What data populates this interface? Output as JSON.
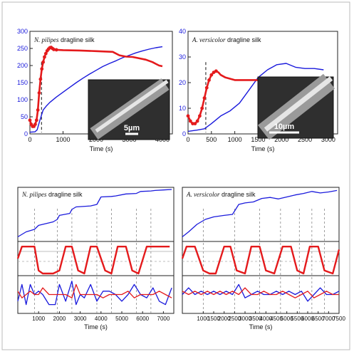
{
  "figure": {
    "background": "#ffffff",
    "frame_color": "#888888"
  },
  "chart_data": [
    {
      "type": "line",
      "title_species": "N. pilipes",
      "title_rest": " dragline silk",
      "xlabel": "Time (s)",
      "xlim": [
        0,
        4300
      ],
      "ylim": [
        0,
        300
      ],
      "xticks": [
        "0",
        "1000",
        "2000",
        "3000",
        "4000"
      ],
      "yticks": [
        "0",
        "50",
        "100",
        "150",
        "200",
        "250",
        "300"
      ],
      "yticks_color": "#1a1adc",
      "dashed_marker_x": 350,
      "inset_scale_label": "5µm",
      "series": [
        {
          "color": "#1a1adc",
          "style": "line",
          "x": [
            0,
            150,
            220,
            300,
            400,
            500,
            600,
            800,
            1000,
            1200,
            1400,
            1600,
            1800,
            2000,
            2200,
            2400,
            2600,
            2800,
            3000,
            3200,
            3400,
            3600,
            3800,
            4000
          ],
          "y": [
            5,
            6,
            12,
            40,
            70,
            82,
            92,
            108,
            122,
            136,
            150,
            163,
            175,
            186,
            197,
            206,
            214,
            223,
            230,
            237,
            243,
            248,
            252,
            255
          ]
        },
        {
          "color": "#e41a1c",
          "style": "markers-line",
          "x": [
            0,
            40,
            80,
            120,
            160,
            200,
            240,
            280,
            320,
            360,
            400,
            440,
            480,
            520,
            560,
            600,
            640,
            680,
            720,
            800,
            1000,
            1500,
            2000,
            2500,
            2700,
            2900,
            3100,
            3300,
            3500,
            3700,
            3800,
            3900,
            4000
          ],
          "y": [
            40,
            28,
            22,
            22,
            28,
            40,
            70,
            120,
            160,
            190,
            210,
            225,
            235,
            243,
            248,
            252,
            253,
            250,
            247,
            246,
            245,
            244,
            242,
            240,
            230,
            226,
            225,
            221,
            217,
            210,
            205,
            200,
            198
          ]
        }
      ]
    },
    {
      "type": "line",
      "title_species": "A. versicolor",
      "title_rest": " dragline silk",
      "xlabel": "Time (s)",
      "xlim": [
        0,
        3200
      ],
      "ylim": [
        0,
        40
      ],
      "xticks": [
        "0",
        "500",
        "1000",
        "1500",
        "2000",
        "2500",
        "3000"
      ],
      "yticks": [
        "0",
        "10",
        "20",
        "30",
        "40"
      ],
      "yticks_color": "#1a1adc",
      "dashed_marker_x": 380,
      "inset_scale_label": "10µm",
      "series": [
        {
          "color": "#1a1adc",
          "style": "line",
          "x": [
            0,
            200,
            350,
            500,
            700,
            900,
            1100,
            1300,
            1500,
            1700,
            1900,
            2100,
            2300,
            2500,
            2700,
            2900
          ],
          "y": [
            1,
            1.5,
            2,
            4,
            7,
            9,
            12,
            17,
            22,
            25,
            27,
            27.5,
            26,
            25.5,
            25.5,
            25
          ]
        },
        {
          "color": "#e41a1c",
          "style": "markers-line",
          "x": [
            0,
            50,
            100,
            150,
            200,
            250,
            300,
            350,
            400,
            450,
            500,
            550,
            600,
            650,
            700,
            800,
            1000,
            1500,
            2000,
            2500,
            2900
          ],
          "y": [
            7,
            5,
            4,
            4,
            5,
            7,
            10,
            14,
            18,
            21,
            23,
            24,
            24.5,
            24,
            23,
            22,
            21,
            21,
            21,
            21,
            21
          ]
        }
      ]
    },
    {
      "type": "line",
      "title_species": "N. pilipes",
      "title_rest": " dragline silk",
      "xlabel": "Time (s)",
      "xlim": [
        0,
        7500
      ],
      "xticks": [
        "1000",
        "2000",
        "3000",
        "4000",
        "5000",
        "6000",
        "7000"
      ],
      "dashed_verticals": [
        800,
        1900,
        2600,
        3800,
        4500,
        5700,
        6400
      ],
      "panels": {
        "top": {
          "ylim": [
            0,
            10
          ],
          "series": [
            {
              "color": "#1a1adc",
              "x": [
                0,
                400,
                800,
                1000,
                1700,
                1900,
                2000,
                2500,
                2600,
                2800,
                3500,
                3800,
                4000,
                4500,
                4700,
                5200,
                5700,
                5900,
                6400,
                6600,
                7000,
                7400
              ],
              "y": [
                0.5,
                1.5,
                2,
                2.8,
                3.5,
                4,
                4.8,
                5.2,
                6,
                6.5,
                6.7,
                7,
                8.5,
                8.6,
                8.7,
                9.1,
                9.2,
                9.6,
                9.7,
                9.8,
                9.9,
                10
              ]
            }
          ]
        },
        "middle": {
          "ylim": [
            0,
            10
          ],
          "series": [
            {
              "color": "#e41a1c",
              "x": [
                0,
                200,
                800,
                1000,
                1200,
                1500,
                1700,
                2000,
                2300,
                2600,
                2900,
                3200,
                3500,
                3800,
                4200,
                4500,
                4800,
                5200,
                5500,
                5800,
                6200,
                6500,
                6800,
                7300
              ],
              "y": [
                5,
                9,
                9,
                1,
                0,
                0,
                0,
                1,
                9,
                9,
                1,
                0,
                9,
                9,
                1,
                0,
                9,
                9,
                1,
                0,
                9,
                9,
                9,
                9
              ]
            }
          ]
        },
        "bottom": {
          "ylim": [
            0,
            10
          ],
          "series": [
            {
              "color": "#1a1adc",
              "x": [
                0,
                200,
                400,
                600,
                800,
                1000,
                1200,
                1500,
                1800,
                2000,
                2300,
                2600,
                2800,
                3000,
                3200,
                3500,
                3800,
                4100,
                4400,
                4700,
                5000,
                5300,
                5600,
                5900,
                6200,
                6500,
                6800,
                7100,
                7400
              ],
              "y": [
                3,
                8,
                2,
                8,
                5,
                6,
                5,
                2,
                2,
                8,
                3,
                9,
                2,
                5,
                4,
                8,
                3,
                6,
                6,
                5,
                3,
                5,
                8,
                5,
                4,
                7,
                3,
                2,
                7
              ]
            },
            {
              "color": "#e41a1c",
              "x": [
                0,
                200,
                400,
                600,
                800,
                1000,
                1200,
                1500,
                1800,
                2000,
                2300,
                2600,
                2800,
                3000,
                3200,
                3500,
                3800,
                4100,
                4400,
                4700,
                5000,
                5300,
                5600,
                5900,
                6200,
                6500,
                6800,
                7100,
                7400
              ],
              "y": [
                6,
                4,
                5,
                6,
                5,
                5,
                7,
                5,
                5,
                5,
                5,
                4,
                8,
                5,
                5,
                5,
                5,
                4,
                5,
                5,
                5,
                6,
                4,
                5,
                5,
                5,
                6,
                5,
                4
              ]
            }
          ]
        }
      }
    },
    {
      "type": "line",
      "title_species": "A. versicolor",
      "title_rest": " dragline silk",
      "xlabel": "Time (s)",
      "xlim": [
        0,
        7500
      ],
      "xticks": [
        "1000",
        "1500",
        "2000",
        "2500",
        "3000",
        "3500",
        "4000",
        "4500",
        "5000",
        "5500",
        "6000",
        "6500",
        "7000",
        "7500"
      ],
      "dashed_verticals": [
        1000,
        2500,
        3700,
        4700,
        5600,
        6200,
        6800
      ],
      "panels": {
        "top": {
          "ylim": [
            0,
            10
          ],
          "series": [
            {
              "color": "#1a1adc",
              "x": [
                0,
                300,
                700,
                1100,
                1500,
                2000,
                2400,
                2700,
                3000,
                3400,
                3800,
                4200,
                4600,
                5000,
                5400,
                5800,
                6200,
                6600,
                7000,
                7400
              ],
              "y": [
                0.5,
                1.5,
                3,
                4,
                4.5,
                4.8,
                5,
                7,
                7.3,
                7.5,
                8.2,
                8.4,
                8.1,
                8.5,
                8.9,
                9.2,
                9.6,
                9.3,
                9.5,
                9.8
              ]
            }
          ]
        },
        "middle": {
          "ylim": [
            0,
            10
          ],
          "series": [
            {
              "color": "#e41a1c",
              "x": [
                0,
                200,
                600,
                1000,
                1300,
                1600,
                2000,
                2300,
                2600,
                3000,
                3300,
                3700,
                4000,
                4400,
                4800,
                5200,
                5500,
                5800,
                6100,
                6500,
                6800,
                7200,
                7500
              ],
              "y": [
                5,
                9,
                9,
                1,
                0,
                0,
                9,
                9,
                1,
                0,
                9,
                9,
                1,
                0,
                9,
                9,
                1,
                0,
                9,
                9,
                1,
                0,
                8
              ]
            }
          ]
        },
        "bottom": {
          "ylim": [
            0,
            10
          ],
          "series": [
            {
              "color": "#1a1adc",
              "x": [
                0,
                300,
                600,
                900,
                1200,
                1500,
                1800,
                2100,
                2400,
                2700,
                3000,
                3300,
                3600,
                3900,
                4200,
                4500,
                4800,
                5100,
                5400,
                5700,
                6000,
                6300,
                6600,
                6900,
                7200,
                7500
              ],
              "y": [
                5,
                7,
                5,
                6,
                5,
                6,
                5,
                6,
                5,
                8,
                4,
                5,
                6,
                5,
                5,
                6,
                5,
                6,
                5,
                6,
                3,
                5,
                7,
                5,
                5,
                6
              ]
            },
            {
              "color": "#e41a1c",
              "x": [
                0,
                300,
                600,
                900,
                1200,
                1500,
                1800,
                2100,
                2400,
                2700,
                3000,
                3300,
                3600,
                3900,
                4200,
                4500,
                4800,
                5100,
                5400,
                5700,
                6000,
                6300,
                6600,
                6900,
                7200,
                7500
              ],
              "y": [
                6,
                5,
                6,
                5,
                6,
                5,
                6,
                5,
                6,
                5,
                7,
                5,
                5,
                6,
                5,
                5,
                6,
                5,
                4,
                5,
                6,
                4,
                5,
                6,
                5,
                5
              ]
            }
          ]
        }
      }
    }
  ]
}
